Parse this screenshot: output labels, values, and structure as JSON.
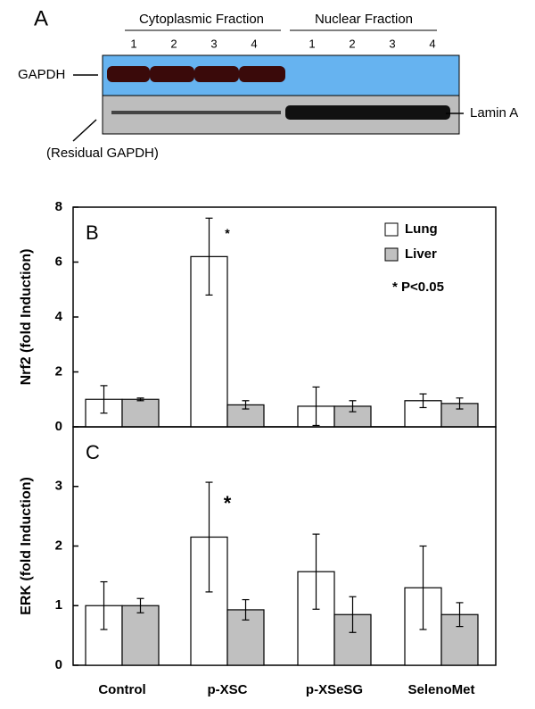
{
  "blot": {
    "label": "A",
    "groups": [
      "Cytoplasmic Fraction",
      "Nuclear Fraction"
    ],
    "lanes": [
      "1",
      "2",
      "3",
      "4"
    ],
    "band_labels": [
      "GAPDH",
      "Lamin A",
      "(Residual GAPDH)"
    ]
  },
  "chart_data": [
    {
      "type": "bar",
      "label": "B",
      "y_label": "Nrf2 (fold Induction)",
      "annotation": "*",
      "note": "* P<0.05",
      "categories": [
        null,
        null,
        null,
        null
      ],
      "series": [
        {
          "name": "Lung",
          "color": "#ffffff",
          "values": [
            1.0,
            6.2,
            0.75,
            0.95
          ],
          "errors": [
            0.5,
            1.4,
            0.7,
            0.25
          ]
        },
        {
          "name": "Liver",
          "color": "#c0c0c0",
          "values": [
            1.0,
            0.8,
            0.75,
            0.85
          ],
          "errors": [
            0.05,
            0.15,
            0.2,
            0.2
          ]
        }
      ],
      "ylim": [
        0,
        8
      ],
      "yticks": [
        0,
        2,
        4,
        6,
        8
      ]
    },
    {
      "type": "bar",
      "label": "C",
      "y_label": "ERK (fold Induction)",
      "annotation": "*",
      "categories": [
        "Control",
        "p-XSC",
        "p-XSeSG",
        "SelenoMet"
      ],
      "series": [
        {
          "color": "#ffffff",
          "values": [
            1.0,
            2.15,
            1.57,
            1.3
          ],
          "errors": [
            0.4,
            0.92,
            0.63,
            0.7
          ]
        },
        {
          "color": "#c0c0c0",
          "values": [
            1.0,
            0.93,
            0.85,
            0.85
          ],
          "errors": [
            0.12,
            0.17,
            0.3,
            0.2
          ]
        }
      ],
      "ylim": [
        0,
        4
      ],
      "yticks": [
        0,
        1,
        2,
        3
      ]
    }
  ]
}
